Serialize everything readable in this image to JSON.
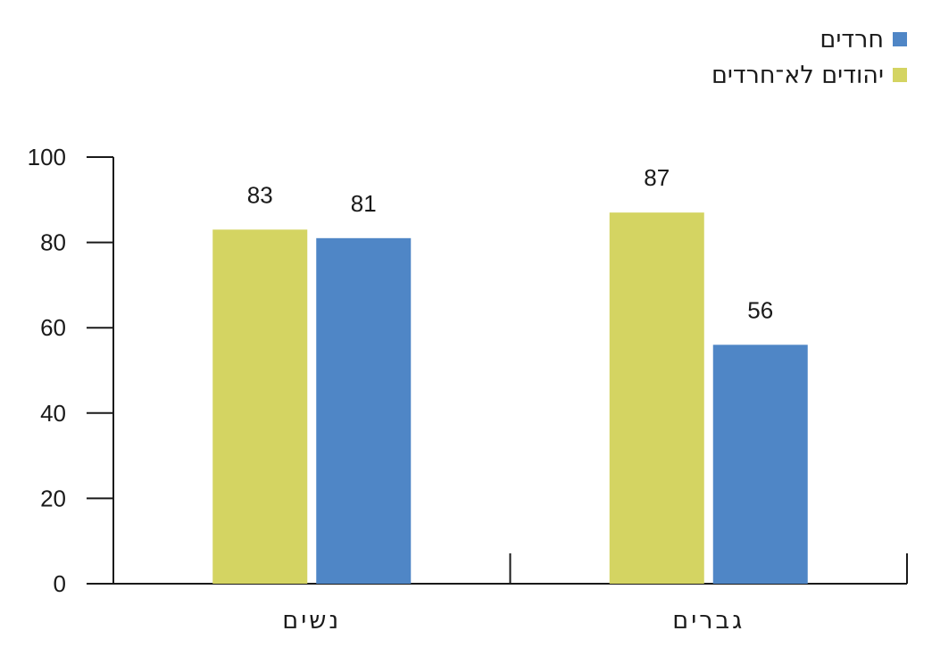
{
  "chart_data": {
    "type": "bar",
    "categories": [
      "גברים",
      "נשים"
    ],
    "series": [
      {
        "name": "חרדים",
        "color": "#4f86c6",
        "values": [
          56,
          81
        ]
      },
      {
        "name": "יהודים לא־חרדים",
        "color": "#d4d462",
        "values": [
          87,
          83
        ]
      }
    ],
    "ylim": [
      0,
      100
    ],
    "yticks": [
      0,
      20,
      40,
      60,
      80,
      100
    ],
    "xlabel": "",
    "ylabel": "",
    "grid": false,
    "legend_position": "top-right",
    "data_labels": true
  }
}
